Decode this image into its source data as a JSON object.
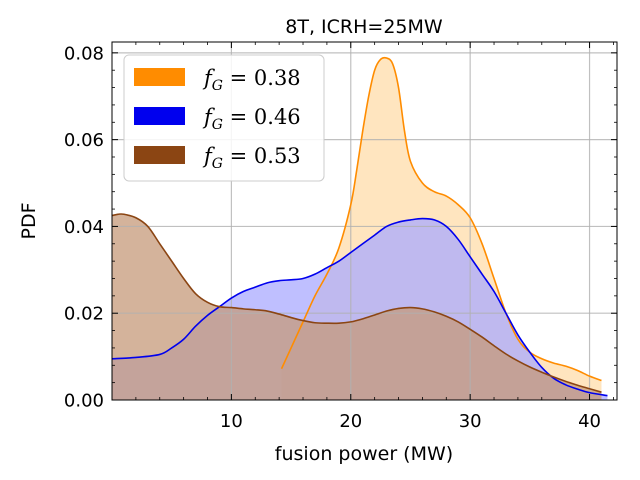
{
  "chart_data": {
    "type": "area",
    "title": "8T, ICRH=25MW",
    "xlabel": "fusion power (MW)",
    "ylabel": "PDF",
    "xlim": [
      0,
      42.3
    ],
    "ylim": [
      0,
      0.0825
    ],
    "xticks": [
      10,
      20,
      30,
      40
    ],
    "xtick_labels": [
      "10",
      "20",
      "30",
      "40"
    ],
    "yticks": [
      0.0,
      0.02,
      0.04,
      0.06,
      0.08
    ],
    "ytick_labels": [
      "0.00",
      "0.02",
      "0.04",
      "0.06",
      "0.08"
    ],
    "grid": true,
    "legend_position": "upper-left",
    "series": [
      {
        "name": "f_G = 0.38",
        "legend_base": "f",
        "legend_sub": "G",
        "legend_rest": " = 0.38",
        "color": "#ff8c00",
        "fill": "#ffdcaa",
        "x": [
          14.2,
          15,
          16,
          17,
          18,
          19,
          20,
          20.5,
          21,
          21.5,
          22,
          22.5,
          23,
          23.5,
          24,
          24.5,
          25,
          26,
          27,
          28,
          29,
          30,
          31,
          32,
          33,
          34,
          35,
          36,
          37,
          38,
          39,
          40,
          41.0
        ],
        "y": [
          0.0072,
          0.012,
          0.018,
          0.024,
          0.029,
          0.035,
          0.045,
          0.053,
          0.062,
          0.07,
          0.076,
          0.0785,
          0.0788,
          0.0775,
          0.072,
          0.062,
          0.055,
          0.05,
          0.048,
          0.047,
          0.045,
          0.042,
          0.036,
          0.028,
          0.02,
          0.014,
          0.011,
          0.0095,
          0.0085,
          0.0078,
          0.0068,
          0.0055,
          0.0045
        ]
      },
      {
        "name": "f_G = 0.46",
        "legend_base": "f",
        "legend_sub": "G",
        "legend_rest": " = 0.46",
        "color": "#0000ee",
        "fill": "#aaaaff",
        "x": [
          0,
          2,
          4,
          5,
          6,
          7,
          8,
          9,
          10,
          11,
          12,
          13,
          14,
          15,
          16,
          17,
          18,
          19,
          20,
          21,
          22,
          23,
          24,
          25,
          26,
          27,
          28,
          29,
          30,
          31,
          32,
          33,
          34,
          35,
          36,
          37,
          38,
          39,
          40,
          41.5
        ],
        "y": [
          0.0095,
          0.0098,
          0.0105,
          0.012,
          0.014,
          0.017,
          0.0195,
          0.0215,
          0.0235,
          0.025,
          0.026,
          0.027,
          0.0275,
          0.0277,
          0.028,
          0.029,
          0.0305,
          0.032,
          0.034,
          0.036,
          0.038,
          0.04,
          0.041,
          0.0415,
          0.0418,
          0.0415,
          0.04,
          0.037,
          0.033,
          0.029,
          0.025,
          0.02,
          0.015,
          0.011,
          0.0075,
          0.005,
          0.0035,
          0.0025,
          0.0017,
          0.001
        ]
      },
      {
        "name": "f_G = 0.53",
        "legend_base": "f",
        "legend_sub": "G",
        "legend_rest": " = 0.53",
        "color": "#8b4513",
        "fill": "#c69a7a",
        "x": [
          0,
          0.5,
          1,
          2,
          3,
          4,
          5,
          6,
          7,
          8,
          9,
          10,
          11,
          12,
          13,
          14,
          15,
          16,
          17,
          18,
          19,
          20,
          21,
          22,
          23,
          24,
          25,
          26,
          27,
          28,
          29,
          30,
          31,
          32,
          33,
          34,
          35,
          36,
          37,
          38,
          39,
          40,
          41.0
        ],
        "y": [
          0.0425,
          0.0428,
          0.0428,
          0.042,
          0.04,
          0.036,
          0.032,
          0.028,
          0.0245,
          0.0225,
          0.0215,
          0.0213,
          0.021,
          0.0208,
          0.0205,
          0.0198,
          0.019,
          0.0183,
          0.0178,
          0.0177,
          0.0177,
          0.018,
          0.0187,
          0.0196,
          0.0205,
          0.0211,
          0.0213,
          0.021,
          0.0203,
          0.0193,
          0.018,
          0.0163,
          0.0145,
          0.0125,
          0.0106,
          0.009,
          0.0076,
          0.0064,
          0.0053,
          0.0043,
          0.0034,
          0.0026,
          0.0018
        ]
      }
    ]
  }
}
